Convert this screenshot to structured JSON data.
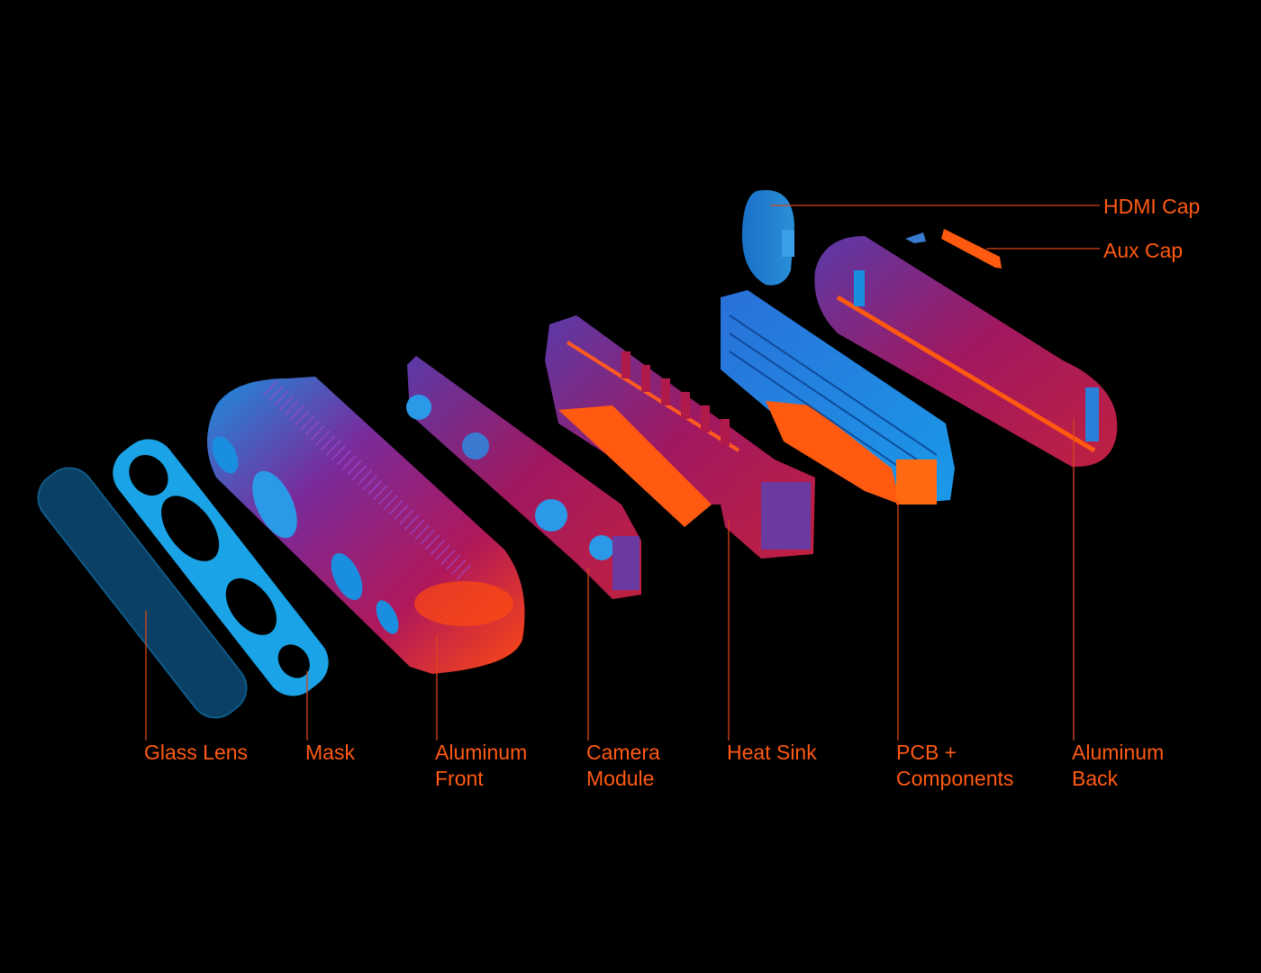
{
  "colors": {
    "label": "#ff5a14",
    "leader": "#d8441a",
    "background": "#000000"
  },
  "labels": {
    "glass_lens": {
      "line1": "Glass Lens"
    },
    "mask": {
      "line1": "Mask"
    },
    "aluminum_front": {
      "line1": "Aluminum",
      "line2": "Front"
    },
    "camera_module": {
      "line1": "Camera",
      "line2": "Module"
    },
    "heat_sink": {
      "line1": "Heat Sink"
    },
    "pcb": {
      "line1": "PCB +",
      "line2": "Components"
    },
    "aluminum_back": {
      "line1": "Aluminum",
      "line2": "Back"
    },
    "hdmi_cap": {
      "line1": "HDMI Cap"
    },
    "aux_cap": {
      "line1": "Aux Cap"
    }
  }
}
